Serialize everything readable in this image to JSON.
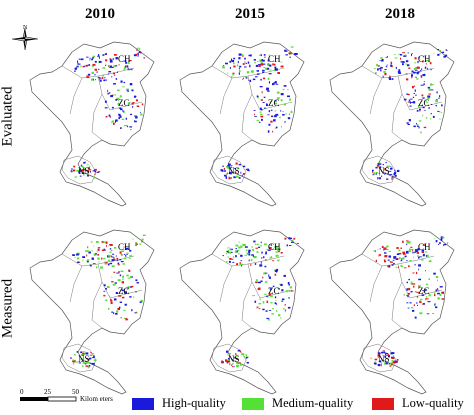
{
  "years": [
    "2010",
    "2015",
    "2018"
  ],
  "rows": [
    "Evaluated",
    "Measured"
  ],
  "region_labels": {
    "ch": "CH",
    "zc": "ZC",
    "ns": "NS"
  },
  "compass": {
    "label": "N"
  },
  "scalebar": {
    "ticks": [
      "0",
      "25",
      "50"
    ],
    "unit": "Kilom eters"
  },
  "legend": [
    {
      "label": "High-quality",
      "color": "#1a1adc"
    },
    {
      "label": "Medium-quality",
      "color": "#55e035"
    },
    {
      "label": "Low-quality",
      "color": "#e01a1a"
    }
  ],
  "panels": [
    {
      "row": "Evaluated",
      "year": "2010",
      "shares": {
        "high": 0.55,
        "medium": 0.25,
        "low": 0.2
      }
    },
    {
      "row": "Evaluated",
      "year": "2015",
      "shares": {
        "high": 0.6,
        "medium": 0.25,
        "low": 0.15
      }
    },
    {
      "row": "Evaluated",
      "year": "2018",
      "shares": {
        "high": 0.65,
        "medium": 0.2,
        "low": 0.15
      }
    },
    {
      "row": "Measured",
      "year": "2010",
      "shares": {
        "high": 0.35,
        "medium": 0.4,
        "low": 0.25
      }
    },
    {
      "row": "Measured",
      "year": "2015",
      "shares": {
        "high": 0.4,
        "medium": 0.35,
        "low": 0.25
      }
    },
    {
      "row": "Measured",
      "year": "2018",
      "shares": {
        "high": 0.45,
        "medium": 0.25,
        "low": 0.3
      }
    }
  ]
}
